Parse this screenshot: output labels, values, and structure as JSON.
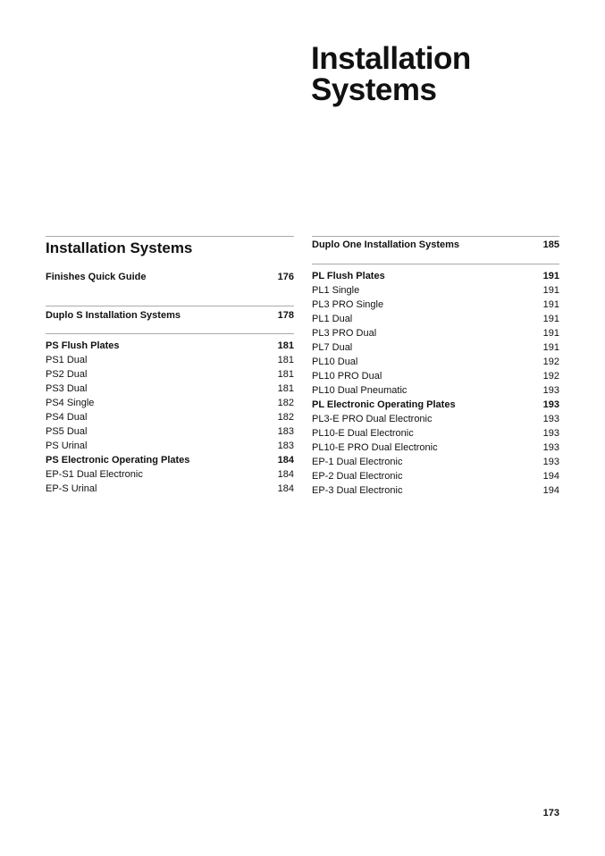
{
  "title_line1": "Installation",
  "title_line2": "Systems",
  "section_title": "Installation Systems",
  "left": {
    "finishes": {
      "label": "Finishes Quick Guide",
      "page": "176"
    },
    "duplo_s": {
      "label": "Duplo S Installation Systems",
      "page": "178"
    },
    "items": [
      {
        "label": "PS Flush Plates",
        "page": "181",
        "bold": true
      },
      {
        "label": "PS1 Dual",
        "page": "181"
      },
      {
        "label": "PS2 Dual",
        "page": "181"
      },
      {
        "label": "PS3 Dual",
        "page": "181"
      },
      {
        "label": "PS4 Single",
        "page": "182"
      },
      {
        "label": "PS4 Dual",
        "page": "182"
      },
      {
        "label": "PS5 Dual",
        "page": "183"
      },
      {
        "label": "PS Urinal",
        "page": "183"
      },
      {
        "label": "PS Electronic Operating Plates",
        "page": "184",
        "bold": true
      },
      {
        "label": "EP-S1 Dual Electronic",
        "page": "184"
      },
      {
        "label": "EP-S Urinal",
        "page": "184"
      }
    ]
  },
  "right": {
    "duplo_one": {
      "label": "Duplo One Installation Systems",
      "page": "185"
    },
    "items": [
      {
        "label": "PL Flush Plates",
        "page": "191",
        "bold": true
      },
      {
        "label": "PL1 Single",
        "page": "191"
      },
      {
        "label": "PL3 PRO Single",
        "page": "191"
      },
      {
        "label": "PL1 Dual",
        "page": "191"
      },
      {
        "label": "PL3 PRO Dual",
        "page": "191"
      },
      {
        "label": "PL7 Dual",
        "page": "191"
      },
      {
        "label": "PL10 Dual",
        "page": "192"
      },
      {
        "label": "PL10 PRO Dual",
        "page": "192"
      },
      {
        "label": "PL10 Dual Pneumatic",
        "page": "193"
      },
      {
        "label": "PL Electronic Operating Plates",
        "page": "193",
        "bold": true
      },
      {
        "label": "PL3-E PRO Dual Electronic",
        "page": "193"
      },
      {
        "label": "PL10-E Dual Electronic",
        "page": "193"
      },
      {
        "label": "PL10-E PRO Dual Electronic",
        "page": "193"
      },
      {
        "label": "EP-1 Dual Electronic",
        "page": "193"
      },
      {
        "label": "EP-2 Dual Electronic",
        "page": "194"
      },
      {
        "label": "EP-3 Dual Electronic",
        "page": "194"
      }
    ]
  },
  "page_number": "173"
}
